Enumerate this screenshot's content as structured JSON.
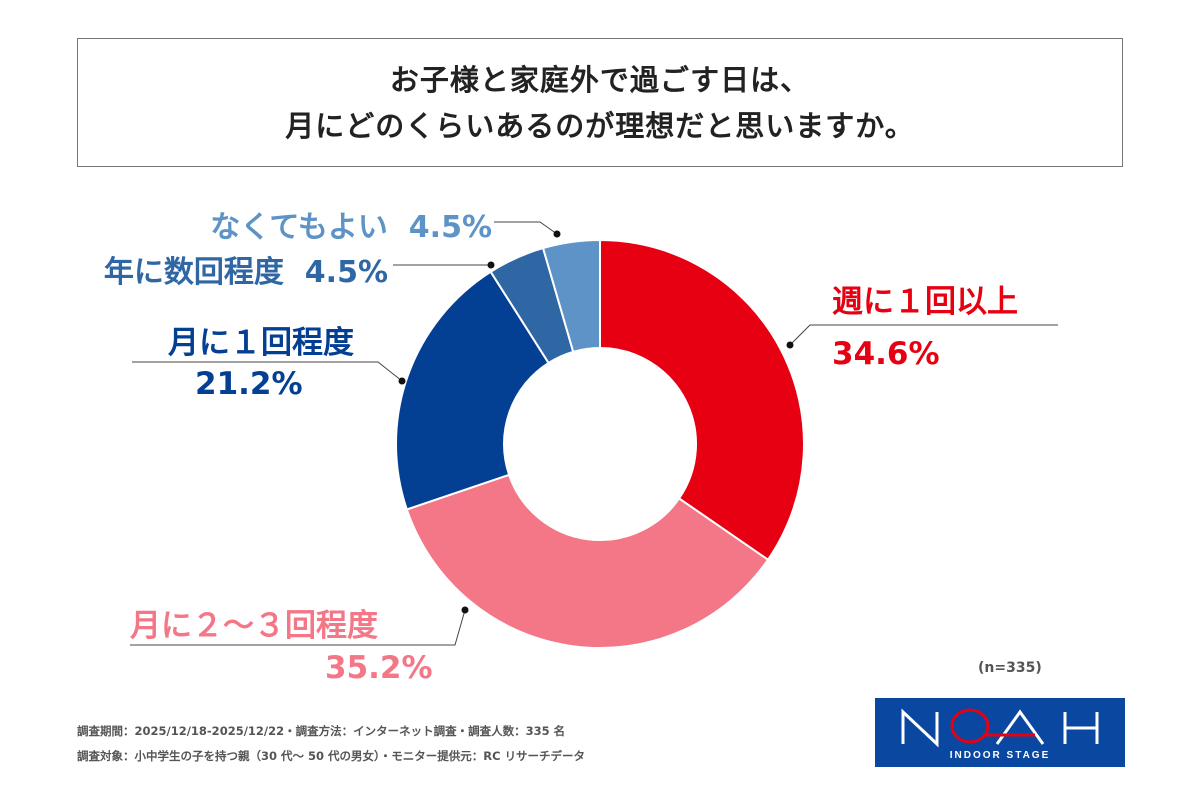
{
  "chart_data": {
    "type": "pie",
    "variant": "donut",
    "title": [
      "お子様と家庭外で過ごす日は、",
      "月にどのくらいあるのが理想だと思いますか。"
    ],
    "slices": [
      {
        "label": "週に１回以上",
        "value": 34.6,
        "display": "34.6%",
        "color": "#e60012"
      },
      {
        "label": "月に２～３回程度",
        "value": 35.2,
        "display": "35.2%",
        "color": "#f37787"
      },
      {
        "label": "月に１回程度",
        "value": 21.2,
        "display": "21.2%",
        "color": "#033f93"
      },
      {
        "label": "年に数回程度",
        "value": 4.5,
        "display": "4.5%",
        "color": "#2f66a4"
      },
      {
        "label": "なくてもよい",
        "value": 4.5,
        "display": "4.5%",
        "color": "#5d93c6"
      }
    ],
    "start": "top",
    "direction": "clockwise",
    "sample": "(n=335)"
  },
  "footer": {
    "line1": "調査期間：2025/12/18-2025/12/22・調査方法：インターネット調査・調査人数：335 名",
    "line2": "調査対象：小中学生の子を持つ親（30 代～ 50 代の男女）・モニター提供元：RC リサーチデータ"
  },
  "logo": {
    "text": "NOAH",
    "subtext": "INDOOR STAGE"
  }
}
